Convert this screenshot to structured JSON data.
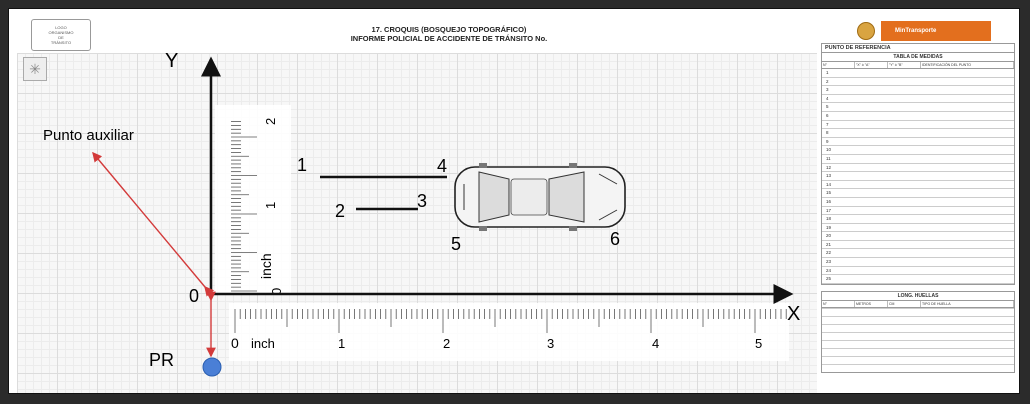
{
  "header": {
    "logo_line1": "LOGO",
    "logo_line2": "ORGANISMO",
    "logo_line3": "DE",
    "logo_line4": "TRÁNSITO",
    "title_line1": "17. CROQUIS (BOSQUEJO TOPOGRÁFICO)",
    "title_line2": "INFORME POLICIAL DE ACCIDENTE DE TRÁNSITO No.",
    "brand": "MinTransporte"
  },
  "diagram": {
    "axis_y_label": "Y",
    "axis_x_label": "X",
    "origin_label": "0",
    "pr_label": "PR",
    "auxiliary_label": "Punto auxiliar",
    "points": [
      "1",
      "2",
      "3",
      "4",
      "5",
      "6"
    ],
    "ruler_vertical": {
      "unit": "inch",
      "ticks": [
        "0",
        "1",
        "2"
      ]
    },
    "ruler_horizontal": {
      "unit": "inch",
      "ticks": [
        "0",
        "1",
        "2",
        "3",
        "4",
        "5"
      ]
    },
    "colors": {
      "arrow": "#d33a3a",
      "pr_dot": "#4a7fd6",
      "axis": "#111111"
    }
  },
  "sidebar": {
    "ref_point": "PUNTO DE REFERENCIA",
    "table_title": "TABLA DE MEDIDAS",
    "columns": [
      "N°",
      "\"X\" ó \"A\"",
      "\"Y\" ó \"B\"",
      "IDENTIFICACIÓN DEL PUNTO"
    ],
    "rows": [
      "1",
      "2",
      "3",
      "4",
      "5",
      "6",
      "7",
      "8",
      "9",
      "10",
      "11",
      "12",
      "13",
      "14",
      "15",
      "16",
      "17",
      "18",
      "19",
      "20",
      "21",
      "22",
      "23",
      "24",
      "25"
    ],
    "long_title": "LONG. HUELLAS",
    "long_columns": [
      "N°",
      "METROS",
      "CM",
      "TIPO DE HUELLA"
    ]
  }
}
